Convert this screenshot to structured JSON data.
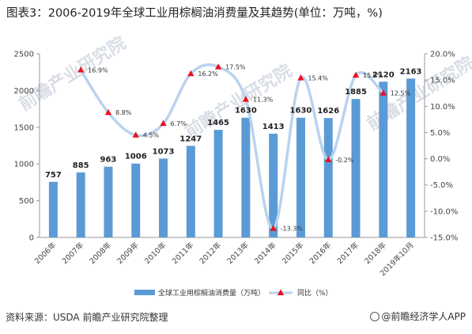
{
  "title": "图表3：2006-2019年全球工业用棕榈油消费量及其趋势(单位：万吨，%)",
  "source": "资料来源：USDA 前瞻产业研究院整理",
  "credit": "@前瞻经济学人APP",
  "watermark": "前瞻产业研究院",
  "colors": {
    "bar": "#5b9bd5",
    "line": "#b9d3ee",
    "marker": "#e8121f"
  },
  "chart_data": {
    "type": "bar",
    "categories": [
      "2006年",
      "2007年",
      "2008年",
      "2009年",
      "2010年",
      "2011年",
      "2012年",
      "2013年",
      "2014年",
      "2015年",
      "2016年",
      "2017年",
      "2018年",
      "2019年10月"
    ],
    "series": [
      {
        "name": "全球工业用棕榈油消费量（万吨）",
        "type": "bar",
        "axis": "left",
        "values": [
          757,
          885,
          963,
          1006,
          1073,
          1247,
          1465,
          1630,
          1413,
          1630,
          1626,
          1885,
          2120,
          2163
        ],
        "labels": [
          "757",
          "885",
          "963",
          "1006",
          "1073",
          "1247",
          "1465",
          "1630",
          "1413",
          "1630",
          "1626",
          "1885",
          "2120",
          "2163"
        ]
      },
      {
        "name": "同比（%）",
        "type": "line",
        "axis": "right",
        "values": [
          null,
          16.9,
          8.8,
          4.5,
          6.7,
          16.2,
          17.5,
          11.3,
          -13.3,
          15.4,
          -0.2,
          15.9,
          12.5,
          null
        ],
        "labels": [
          "",
          "16.9%",
          "8.8%",
          "4.5%",
          "6.7%",
          "16.2%",
          "17.5%",
          "11.3%",
          "-13.3%",
          "15.4%",
          "-0.2%",
          "15.9%",
          "12.5%",
          ""
        ]
      }
    ],
    "y_left": {
      "min": 0,
      "max": 2500,
      "ticks": [
        "0",
        "500",
        "1000",
        "1500",
        "2000",
        "2500"
      ]
    },
    "y_right": {
      "min": -15,
      "max": 20,
      "ticks": [
        "-15.0%",
        "-10.0%",
        "-5.0%",
        "0.0%",
        "5.0%",
        "10.0%",
        "15.0%",
        "20.0%"
      ]
    },
    "legend_position": "bottom",
    "grid": false
  }
}
